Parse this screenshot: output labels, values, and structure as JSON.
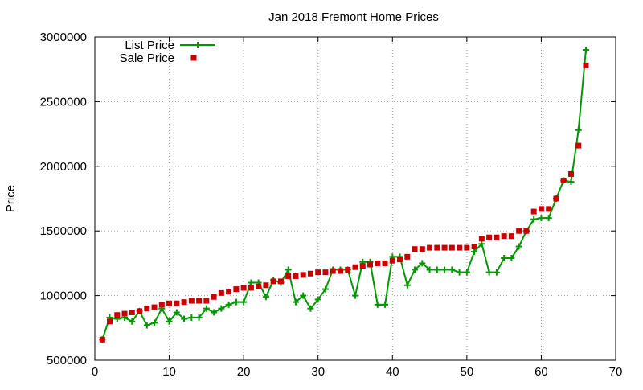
{
  "chart_data": {
    "type": "line",
    "title": "Jan 2018 Fremont Home Prices",
    "xlabel": "",
    "ylabel": "Price",
    "xlim": [
      0,
      70
    ],
    "ylim": [
      500000,
      3000000
    ],
    "x_ticks": [
      0,
      10,
      20,
      30,
      40,
      50,
      60,
      70
    ],
    "y_ticks": [
      500000,
      1000000,
      1500000,
      2000000,
      2500000,
      3000000
    ],
    "x_tick_labels": [
      "0",
      "10",
      "20",
      "30",
      "40",
      "50",
      "60",
      "70"
    ],
    "y_tick_labels": [
      "500000",
      "1000000",
      "1500000",
      "2000000",
      "2500000",
      "3000000"
    ],
    "grid": true,
    "legend_position": "top-left",
    "x": [
      1,
      2,
      3,
      4,
      5,
      6,
      7,
      8,
      9,
      10,
      11,
      12,
      13,
      14,
      15,
      16,
      17,
      18,
      19,
      20,
      21,
      22,
      23,
      24,
      25,
      26,
      27,
      28,
      29,
      30,
      31,
      32,
      33,
      34,
      35,
      36,
      37,
      38,
      39,
      40,
      41,
      42,
      43,
      44,
      45,
      46,
      47,
      48,
      49,
      50,
      51,
      52,
      53,
      54,
      55,
      56,
      57,
      58,
      59,
      60,
      61,
      62,
      63,
      64,
      65,
      66
    ],
    "series": [
      {
        "name": "List Price",
        "style": "line-plus",
        "color": "#009900",
        "values": [
          660000,
          830000,
          820000,
          830000,
          800000,
          880000,
          770000,
          790000,
          900000,
          800000,
          870000,
          820000,
          830000,
          830000,
          900000,
          870000,
          900000,
          930000,
          950000,
          950000,
          1100000,
          1100000,
          990000,
          1120000,
          1100000,
          1200000,
          950000,
          1000000,
          900000,
          970000,
          1050000,
          1200000,
          1200000,
          1200000,
          1000000,
          1260000,
          1260000,
          930000,
          930000,
          1300000,
          1300000,
          1080000,
          1200000,
          1250000,
          1200000,
          1200000,
          1200000,
          1200000,
          1180000,
          1180000,
          1340000,
          1400000,
          1180000,
          1180000,
          1290000,
          1290000,
          1380000,
          1500000,
          1590000,
          1600000,
          1600000,
          1750000,
          1890000,
          1880000,
          2280000,
          2900000
        ]
      },
      {
        "name": "Sale Price",
        "style": "square",
        "color": "#cc0000",
        "values": [
          660000,
          800000,
          850000,
          860000,
          870000,
          880000,
          900000,
          910000,
          930000,
          940000,
          940000,
          950000,
          960000,
          960000,
          960000,
          990000,
          1020000,
          1030000,
          1050000,
          1060000,
          1060000,
          1070000,
          1080000,
          1110000,
          1110000,
          1150000,
          1150000,
          1160000,
          1170000,
          1180000,
          1180000,
          1190000,
          1190000,
          1200000,
          1220000,
          1230000,
          1240000,
          1250000,
          1250000,
          1270000,
          1280000,
          1300000,
          1360000,
          1360000,
          1370000,
          1370000,
          1370000,
          1370000,
          1370000,
          1370000,
          1380000,
          1440000,
          1450000,
          1450000,
          1460000,
          1460000,
          1500000,
          1500000,
          1650000,
          1670000,
          1670000,
          1750000,
          1890000,
          1940000,
          2160000,
          2780000
        ]
      }
    ]
  }
}
